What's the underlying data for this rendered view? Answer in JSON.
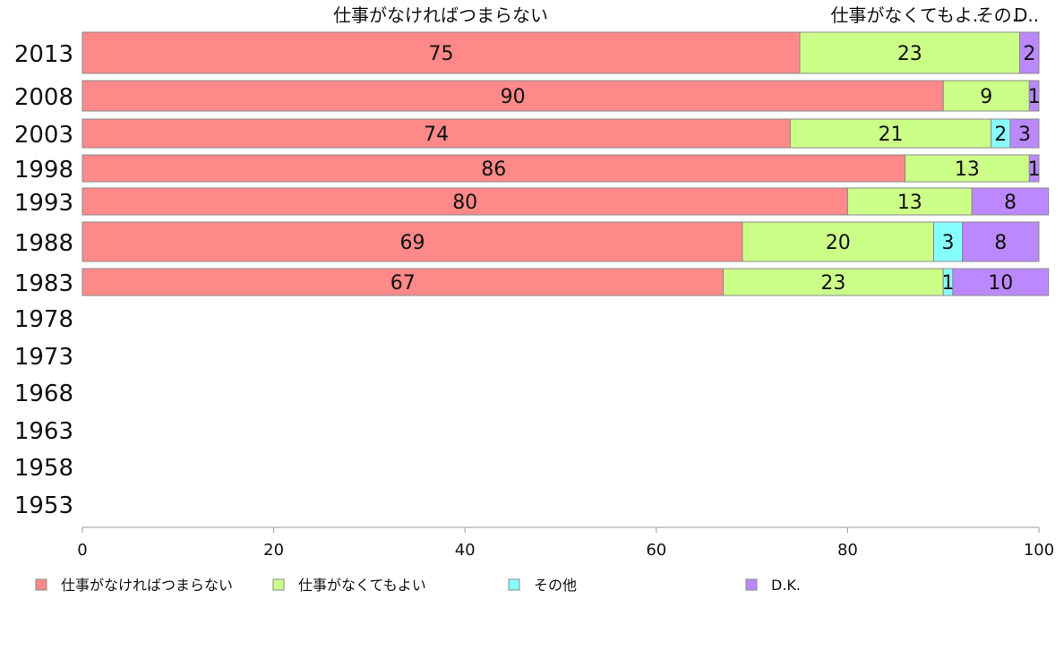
{
  "chart_data": {
    "type": "bar",
    "orientation": "horizontal",
    "stacked": true,
    "categories": [
      "2013",
      "2008",
      "2003",
      "1998",
      "1993",
      "1988",
      "1983",
      "1978",
      "1973",
      "1968",
      "1963",
      "1958",
      "1953"
    ],
    "series": [
      {
        "name": "仕事がなければつまらない",
        "color": "#ff8888",
        "values": [
          75,
          90,
          74,
          86,
          80,
          69,
          67,
          null,
          null,
          null,
          null,
          null,
          null
        ]
      },
      {
        "name": "仕事がなくてもよい",
        "color": "#ccff88",
        "values": [
          23,
          9,
          21,
          13,
          13,
          20,
          23,
          null,
          null,
          null,
          null,
          null,
          null
        ]
      },
      {
        "name": "その他",
        "color": "#88ffff",
        "values": [
          0,
          0,
          2,
          0,
          0,
          3,
          1,
          null,
          null,
          null,
          null,
          null,
          null
        ]
      },
      {
        "name": "D.K.",
        "color": "#bb88ff",
        "values": [
          2,
          1,
          3,
          1,
          8,
          8,
          10,
          null,
          null,
          null,
          null,
          null,
          null
        ]
      }
    ],
    "top_labels": [
      "仕事がなければつまらない",
      "仕事がなくてもよ..",
      "その..",
      "D.."
    ],
    "xlim": [
      0,
      100
    ],
    "xticks": [
      0,
      20,
      40,
      60,
      80,
      100
    ],
    "legend": "bottom",
    "grid": false
  }
}
